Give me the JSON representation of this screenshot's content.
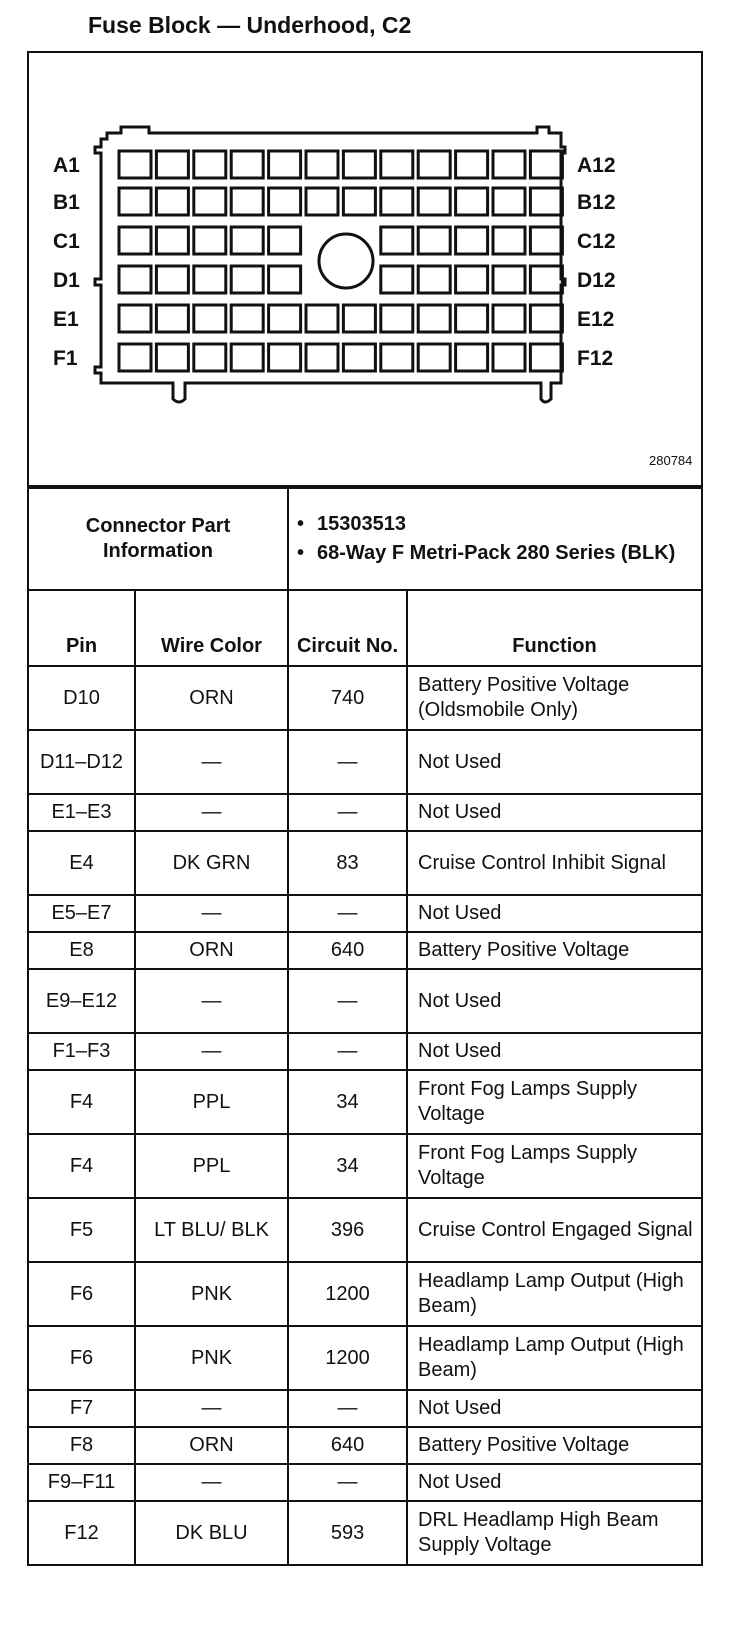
{
  "title": "Fuse Block — Underhood, C2",
  "diagram": {
    "row_labels_left": [
      "A1",
      "B1",
      "C1",
      "D1",
      "E1",
      "F1"
    ],
    "row_labels_right": [
      "A12",
      "B12",
      "C12",
      "D12",
      "E12",
      "F12"
    ],
    "figure_number": "280784"
  },
  "connector_info": {
    "label": "Connector Part Information",
    "items": [
      "15303513",
      "68-Way F Metri-Pack 280 Series (BLK)"
    ]
  },
  "table": {
    "headers": [
      "Pin",
      "Wire Color",
      "Circuit No.",
      "Function"
    ],
    "rows": [
      {
        "pin": "D10",
        "color": "ORN",
        "circuit": "740",
        "function": "Battery Positive Voltage (Oldsmobile Only)"
      },
      {
        "pin": "D11–D12",
        "color": "—",
        "circuit": "—",
        "function": "Not Used"
      },
      {
        "pin": "E1–E3",
        "color": "—",
        "circuit": "—",
        "function": "Not Used"
      },
      {
        "pin": "E4",
        "color": "DK GRN",
        "circuit": "83",
        "function": "Cruise Control Inhibit Signal"
      },
      {
        "pin": "E5–E7",
        "color": "—",
        "circuit": "—",
        "function": "Not Used"
      },
      {
        "pin": "E8",
        "color": "ORN",
        "circuit": "640",
        "function": "Battery Positive Voltage"
      },
      {
        "pin": "E9–E12",
        "color": "—",
        "circuit": "—",
        "function": "Not Used"
      },
      {
        "pin": "F1–F3",
        "color": "—",
        "circuit": "—",
        "function": "Not Used"
      },
      {
        "pin": "F4",
        "color": "PPL",
        "circuit": "34",
        "function": "Front Fog Lamps Supply Voltage"
      },
      {
        "pin": "F4",
        "color": "PPL",
        "circuit": "34",
        "function": "Front Fog Lamps Supply Voltage"
      },
      {
        "pin": "F5",
        "color": "LT BLU/ BLK",
        "circuit": "396",
        "function": "Cruise Control Engaged Signal"
      },
      {
        "pin": "F6",
        "color": "PNK",
        "circuit": "1200",
        "function": "Headlamp Lamp Output (High Beam)"
      },
      {
        "pin": "F6",
        "color": "PNK",
        "circuit": "1200",
        "function": "Headlamp Lamp Output (High Beam)"
      },
      {
        "pin": "F7",
        "color": "—",
        "circuit": "—",
        "function": "Not Used"
      },
      {
        "pin": "F8",
        "color": "ORN",
        "circuit": "640",
        "function": "Battery Positive Voltage"
      },
      {
        "pin": "F9–F11",
        "color": "—",
        "circuit": "—",
        "function": "Not Used"
      },
      {
        "pin": "F12",
        "color": "DK BLU",
        "circuit": "593",
        "function": "DRL Headlamp High Beam Supply Voltage"
      }
    ]
  }
}
